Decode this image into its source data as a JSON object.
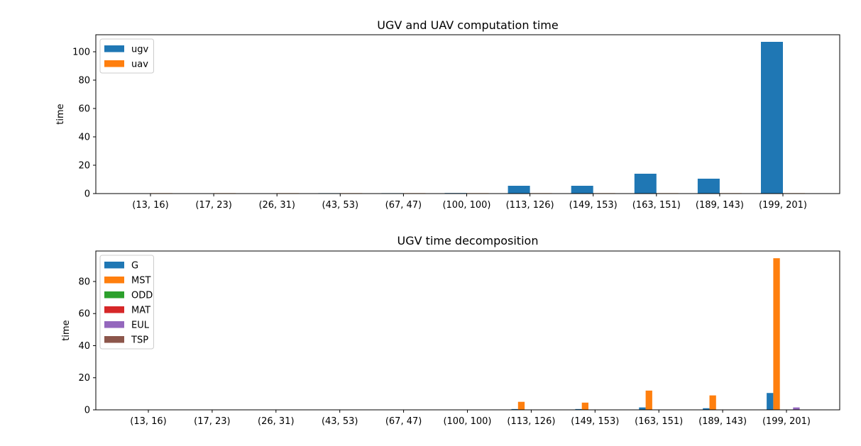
{
  "chart_data": [
    {
      "type": "bar",
      "title": "UGV and UAV computation time",
      "xlabel": "",
      "ylabel": "time",
      "ylim": [
        0,
        112
      ],
      "yticks": [
        0,
        20,
        40,
        60,
        80,
        100
      ],
      "grid": false,
      "legend": "upper-left",
      "categories": [
        "(13, 16)",
        "(17, 23)",
        "(26, 31)",
        "(43, 53)",
        "(67, 47)",
        "(100, 100)",
        "(113, 126)",
        "(149, 153)",
        "(163, 151)",
        "(189, 143)",
        "(199, 201)"
      ],
      "series": [
        {
          "name": "ugv",
          "color": "#1f77b4",
          "values": [
            0.05,
            0.08,
            0.1,
            0.3,
            0.3,
            0.4,
            5.5,
            5.5,
            14,
            10.5,
            107
          ]
        },
        {
          "name": "uav",
          "color": "#ff7f0e",
          "values": [
            0.3,
            0.3,
            0.3,
            0.3,
            0.3,
            0.3,
            0.3,
            0.3,
            0.3,
            0.3,
            0.3
          ]
        }
      ]
    },
    {
      "type": "bar",
      "title": "UGV time decomposition",
      "xlabel": "",
      "ylabel": "time",
      "ylim": [
        0,
        99
      ],
      "yticks": [
        0,
        20,
        40,
        60,
        80
      ],
      "grid": false,
      "legend": "upper-left",
      "categories": [
        "(13, 16)",
        "(17, 23)",
        "(26, 31)",
        "(43, 53)",
        "(67, 47)",
        "(100, 100)",
        "(113, 126)",
        "(149, 153)",
        "(163, 151)",
        "(189, 143)",
        "(199, 201)"
      ],
      "series": [
        {
          "name": "G",
          "color": "#1f77b4",
          "values": [
            0,
            0,
            0,
            0,
            0,
            0.05,
            0.5,
            0.5,
            1.5,
            1.0,
            10.5
          ]
        },
        {
          "name": "MST",
          "color": "#ff7f0e",
          "values": [
            0,
            0,
            0,
            0,
            0,
            0.1,
            5.0,
            4.5,
            12,
            9,
            94.5
          ]
        },
        {
          "name": "ODD",
          "color": "#2ca02c",
          "values": [
            0,
            0,
            0,
            0,
            0,
            0,
            0,
            0,
            0,
            0,
            0.1
          ]
        },
        {
          "name": "MAT",
          "color": "#d62728",
          "values": [
            0,
            0,
            0,
            0,
            0,
            0,
            0,
            0,
            0,
            0,
            0.1
          ]
        },
        {
          "name": "EUL",
          "color": "#9467bd",
          "values": [
            0,
            0,
            0,
            0,
            0,
            0,
            0.05,
            0.05,
            0.1,
            0.1,
            1.5
          ]
        },
        {
          "name": "TSP",
          "color": "#8c564b",
          "values": [
            0,
            0,
            0,
            0,
            0,
            0,
            0,
            0,
            0,
            0,
            0.1
          ]
        }
      ]
    }
  ]
}
